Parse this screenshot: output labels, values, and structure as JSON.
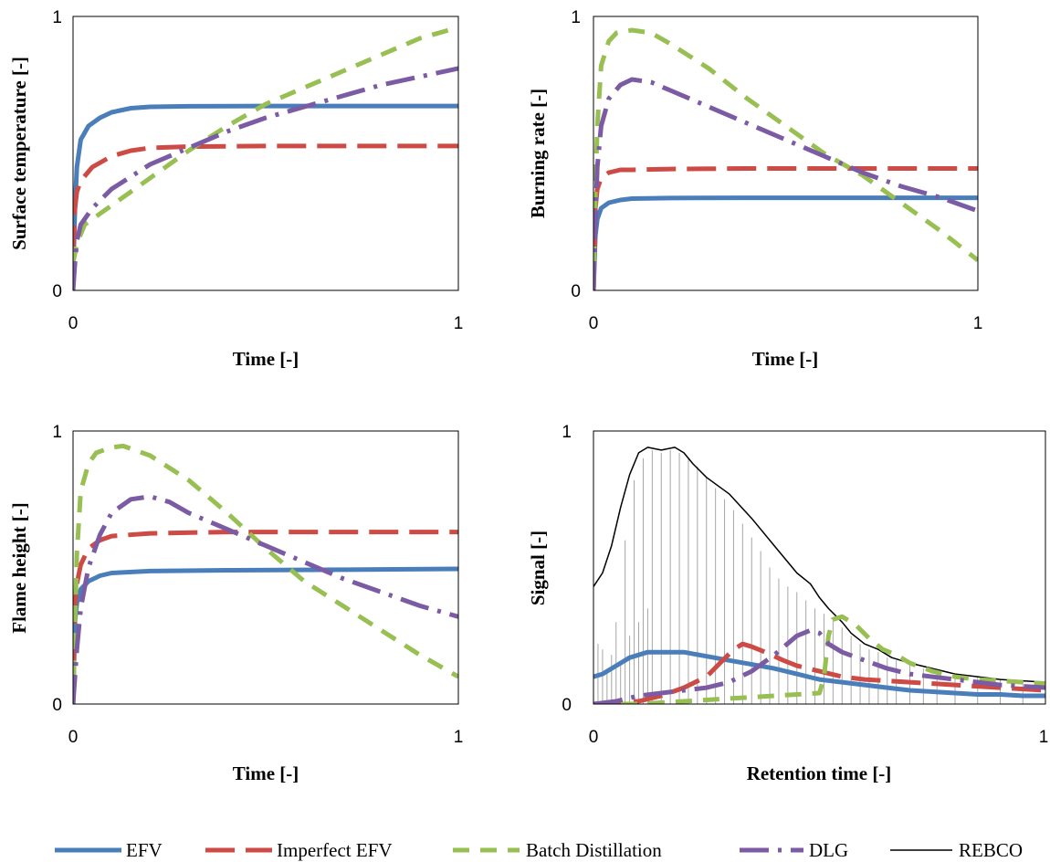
{
  "styles": {
    "EFV": {
      "color": "#4a7ebb",
      "width": 5,
      "dash": ""
    },
    "Imperfect EFV": {
      "color": "#cd4a45",
      "width": 5,
      "dash": "32 12"
    },
    "Batch Distillation": {
      "color": "#98bf52",
      "width": 5,
      "dash": "18 12"
    },
    "DLG": {
      "color": "#7b5ba3",
      "width": 5,
      "dash": "32 10 4 10"
    },
    "REBCO": {
      "color": "#000000",
      "width": 1.5,
      "dash": ""
    },
    "REBCO signal": {
      "color": "#a6a6a6",
      "width": 1,
      "dash": ""
    }
  },
  "legend": {
    "position": "bottom",
    "entries": [
      "EFV",
      "Imperfect EFV",
      "Batch Distillation",
      "DLG",
      "REBCO"
    ]
  },
  "chart_data": [
    {
      "type": "line",
      "xlabel": "Time [-]",
      "ylabel": "Surface temperature [-]",
      "xlim": [
        0,
        1
      ],
      "ylim": [
        0,
        1
      ],
      "xticks": [
        "0",
        "1"
      ],
      "yticks": [
        "0",
        "1"
      ],
      "grid": false,
      "series": [
        {
          "name": "EFV",
          "x": [
            0,
            0.005,
            0.01,
            0.02,
            0.04,
            0.07,
            0.1,
            0.15,
            0.2,
            0.3,
            0.5,
            0.7,
            1.0
          ],
          "y": [
            0.05,
            0.3,
            0.45,
            0.55,
            0.6,
            0.63,
            0.65,
            0.665,
            0.67,
            0.672,
            0.673,
            0.673,
            0.673
          ]
        },
        {
          "name": "Imperfect EFV",
          "x": [
            0,
            0.005,
            0.01,
            0.02,
            0.05,
            0.1,
            0.15,
            0.2,
            0.3,
            0.5,
            1.0
          ],
          "y": [
            0.13,
            0.3,
            0.36,
            0.4,
            0.45,
            0.49,
            0.51,
            0.52,
            0.525,
            0.527,
            0.527
          ]
        },
        {
          "name": "Batch Distillation",
          "x": [
            0,
            0.01,
            0.03,
            0.1,
            0.2,
            0.3,
            0.4,
            0.5,
            0.6,
            0.7,
            0.8,
            0.9,
            1.0
          ],
          "y": [
            0.1,
            0.17,
            0.24,
            0.31,
            0.41,
            0.51,
            0.6,
            0.68,
            0.74,
            0.8,
            0.86,
            0.92,
            0.96
          ]
        },
        {
          "name": "DLG",
          "x": [
            0,
            0.005,
            0.01,
            0.02,
            0.05,
            0.1,
            0.2,
            0.3,
            0.4,
            0.5,
            0.6,
            0.7,
            0.8,
            0.9,
            1.0
          ],
          "y": [
            0.0,
            0.1,
            0.18,
            0.24,
            0.3,
            0.37,
            0.46,
            0.52,
            0.58,
            0.63,
            0.67,
            0.71,
            0.75,
            0.78,
            0.81
          ]
        }
      ]
    },
    {
      "type": "line",
      "xlabel": "Time [-]",
      "ylabel": "Burning rate [-]",
      "xlim": [
        0,
        1
      ],
      "ylim": [
        0,
        1
      ],
      "xticks": [
        "0",
        "1"
      ],
      "yticks": [
        "0",
        "1"
      ],
      "grid": false,
      "series": [
        {
          "name": "EFV",
          "x": [
            0,
            0.005,
            0.01,
            0.02,
            0.04,
            0.07,
            0.1,
            0.2,
            0.4,
            0.7,
            1.0
          ],
          "y": [
            0.0,
            0.2,
            0.26,
            0.3,
            0.32,
            0.33,
            0.335,
            0.337,
            0.338,
            0.338,
            0.338
          ]
        },
        {
          "name": "Imperfect EFV",
          "x": [
            0,
            0.005,
            0.01,
            0.02,
            0.04,
            0.07,
            0.1,
            0.2,
            0.4,
            0.7,
            1.0
          ],
          "y": [
            0.0,
            0.3,
            0.37,
            0.41,
            0.43,
            0.44,
            0.44,
            0.443,
            0.445,
            0.445,
            0.445
          ]
        },
        {
          "name": "Batch Distillation",
          "x": [
            0,
            0.005,
            0.01,
            0.02,
            0.04,
            0.06,
            0.1,
            0.15,
            0.2,
            0.3,
            0.4,
            0.5,
            0.6,
            0.7,
            0.8,
            0.9,
            1.0
          ],
          "y": [
            0.0,
            0.35,
            0.6,
            0.82,
            0.91,
            0.94,
            0.95,
            0.94,
            0.9,
            0.81,
            0.7,
            0.6,
            0.5,
            0.42,
            0.32,
            0.22,
            0.11
          ]
        },
        {
          "name": "DLG",
          "x": [
            0,
            0.005,
            0.01,
            0.02,
            0.04,
            0.07,
            0.1,
            0.15,
            0.2,
            0.3,
            0.4,
            0.5,
            0.6,
            0.7,
            0.8,
            0.9,
            1.0
          ],
          "y": [
            0.0,
            0.25,
            0.45,
            0.6,
            0.7,
            0.75,
            0.77,
            0.76,
            0.73,
            0.67,
            0.61,
            0.55,
            0.49,
            0.43,
            0.38,
            0.34,
            0.29
          ]
        }
      ]
    },
    {
      "type": "line",
      "xlabel": "Time [-]",
      "ylabel": "Flame height [-]",
      "xlim": [
        0,
        1
      ],
      "ylim": [
        0,
        1
      ],
      "xticks": [
        "0",
        "1"
      ],
      "yticks": [
        "0",
        "1"
      ],
      "grid": false,
      "series": [
        {
          "name": "EFV",
          "x": [
            0,
            0.005,
            0.01,
            0.02,
            0.04,
            0.07,
            0.1,
            0.2,
            0.4,
            0.7,
            1.0
          ],
          "y": [
            0.0,
            0.3,
            0.37,
            0.42,
            0.45,
            0.47,
            0.48,
            0.487,
            0.49,
            0.492,
            0.495
          ]
        },
        {
          "name": "Imperfect EFV",
          "x": [
            0,
            0.005,
            0.01,
            0.02,
            0.04,
            0.07,
            0.1,
            0.2,
            0.4,
            0.7,
            1.0
          ],
          "y": [
            0.0,
            0.36,
            0.44,
            0.51,
            0.57,
            0.6,
            0.615,
            0.625,
            0.63,
            0.63,
            0.63
          ]
        },
        {
          "name": "Batch Distillation",
          "x": [
            0,
            0.005,
            0.01,
            0.02,
            0.04,
            0.06,
            0.1,
            0.13,
            0.2,
            0.3,
            0.4,
            0.5,
            0.6,
            0.7,
            0.8,
            0.9,
            1.0
          ],
          "y": [
            0.0,
            0.3,
            0.55,
            0.78,
            0.88,
            0.92,
            0.94,
            0.945,
            0.91,
            0.82,
            0.7,
            0.57,
            0.45,
            0.36,
            0.27,
            0.18,
            0.1
          ]
        },
        {
          "name": "DLG",
          "x": [
            0,
            0.005,
            0.01,
            0.02,
            0.04,
            0.07,
            0.1,
            0.15,
            0.2,
            0.25,
            0.3,
            0.4,
            0.5,
            0.6,
            0.7,
            0.8,
            0.9,
            1.0
          ],
          "y": [
            0.0,
            0.1,
            0.2,
            0.35,
            0.5,
            0.62,
            0.7,
            0.75,
            0.76,
            0.74,
            0.7,
            0.64,
            0.58,
            0.52,
            0.46,
            0.41,
            0.36,
            0.32
          ]
        }
      ]
    },
    {
      "type": "line",
      "xlabel": "Retention time [-]",
      "ylabel": "Signal [-]",
      "xlim": [
        0,
        1
      ],
      "ylim": [
        0,
        1
      ],
      "xticks": [
        "0",
        "1"
      ],
      "yticks": [
        "0",
        "1"
      ],
      "grid": false,
      "series": [
        {
          "name": "REBCO",
          "x": [
            0,
            0.02,
            0.04,
            0.06,
            0.08,
            0.1,
            0.12,
            0.15,
            0.18,
            0.2,
            0.22,
            0.25,
            0.3,
            0.35,
            0.4,
            0.45,
            0.48,
            0.5,
            0.52,
            0.55,
            0.57,
            0.6,
            0.63,
            0.66,
            0.7,
            0.75,
            0.8,
            0.85,
            0.9,
            0.95,
            1.0
          ],
          "y": [
            0.43,
            0.48,
            0.58,
            0.72,
            0.84,
            0.92,
            0.94,
            0.93,
            0.94,
            0.92,
            0.88,
            0.83,
            0.77,
            0.68,
            0.58,
            0.48,
            0.44,
            0.39,
            0.35,
            0.3,
            0.26,
            0.22,
            0.2,
            0.17,
            0.15,
            0.13,
            0.11,
            0.1,
            0.09,
            0.085,
            0.08
          ]
        },
        {
          "name": "EFV",
          "x": [
            0,
            0.02,
            0.05,
            0.08,
            0.12,
            0.15,
            0.2,
            0.25,
            0.3,
            0.35,
            0.4,
            0.45,
            0.5,
            0.55,
            0.6,
            0.65,
            0.7,
            0.75,
            0.8,
            0.85,
            0.9,
            0.95,
            1.0
          ],
          "y": [
            0.1,
            0.11,
            0.14,
            0.17,
            0.19,
            0.19,
            0.19,
            0.175,
            0.16,
            0.145,
            0.13,
            0.11,
            0.09,
            0.08,
            0.07,
            0.06,
            0.05,
            0.045,
            0.04,
            0.035,
            0.035,
            0.03,
            0.03
          ]
        },
        {
          "name": "Imperfect EFV",
          "x": [
            0,
            0.05,
            0.1,
            0.15,
            0.2,
            0.25,
            0.28,
            0.31,
            0.33,
            0.35,
            0.38,
            0.42,
            0.45,
            0.5,
            0.55,
            0.6,
            0.7,
            0.8,
            0.9,
            1.0
          ],
          "y": [
            0.0,
            0.005,
            0.01,
            0.03,
            0.06,
            0.1,
            0.15,
            0.2,
            0.22,
            0.21,
            0.19,
            0.16,
            0.14,
            0.12,
            0.1,
            0.09,
            0.08,
            0.07,
            0.06,
            0.05
          ]
        },
        {
          "name": "Batch Distillation",
          "x": [
            0,
            0.1,
            0.2,
            0.3,
            0.4,
            0.5,
            0.51,
            0.52,
            0.53,
            0.55,
            0.58,
            0.61,
            0.64,
            0.67,
            0.7,
            0.75,
            0.8,
            0.85,
            0.9,
            0.95,
            1.0
          ],
          "y": [
            0.0,
            0.0,
            0.01,
            0.02,
            0.03,
            0.04,
            0.1,
            0.25,
            0.31,
            0.32,
            0.29,
            0.24,
            0.2,
            0.18,
            0.15,
            0.12,
            0.1,
            0.09,
            0.085,
            0.08,
            0.075
          ]
        },
        {
          "name": "DLG",
          "x": [
            0,
            0.05,
            0.1,
            0.15,
            0.2,
            0.25,
            0.3,
            0.35,
            0.4,
            0.45,
            0.48,
            0.5,
            0.52,
            0.55,
            0.6,
            0.65,
            0.7,
            0.8,
            0.9,
            1.0
          ],
          "y": [
            0.0,
            0.01,
            0.03,
            0.04,
            0.05,
            0.06,
            0.08,
            0.12,
            0.18,
            0.25,
            0.27,
            0.26,
            0.22,
            0.19,
            0.16,
            0.13,
            0.11,
            0.09,
            0.07,
            0.06
          ]
        },
        {
          "name": "REBCO signal",
          "x": [
            0.01,
            0.02,
            0.03,
            0.04,
            0.05,
            0.06,
            0.07,
            0.08,
            0.09,
            0.1,
            0.11,
            0.12,
            0.13,
            0.15,
            0.17,
            0.19,
            0.21,
            0.23,
            0.25,
            0.27,
            0.29,
            0.31,
            0.33,
            0.35,
            0.37,
            0.39,
            0.41,
            0.43,
            0.45,
            0.47,
            0.49,
            0.51,
            0.53,
            0.55,
            0.57,
            0.59,
            0.61,
            0.63,
            0.65,
            0.67,
            0.7,
            0.73,
            0.76,
            0.8,
            0.85,
            0.9,
            0.95
          ],
          "y": [
            0.22,
            0.2,
            0.12,
            0.18,
            0.3,
            0.15,
            0.6,
            0.25,
            0.82,
            0.3,
            0.9,
            0.35,
            0.93,
            0.92,
            0.93,
            0.92,
            0.9,
            0.87,
            0.83,
            0.79,
            0.75,
            0.71,
            0.66,
            0.61,
            0.56,
            0.5,
            0.46,
            0.43,
            0.41,
            0.38,
            0.35,
            0.33,
            0.31,
            0.28,
            0.25,
            0.22,
            0.2,
            0.19,
            0.17,
            0.16,
            0.15,
            0.13,
            0.12,
            0.11,
            0.1,
            0.09,
            0.085
          ]
        }
      ]
    }
  ]
}
